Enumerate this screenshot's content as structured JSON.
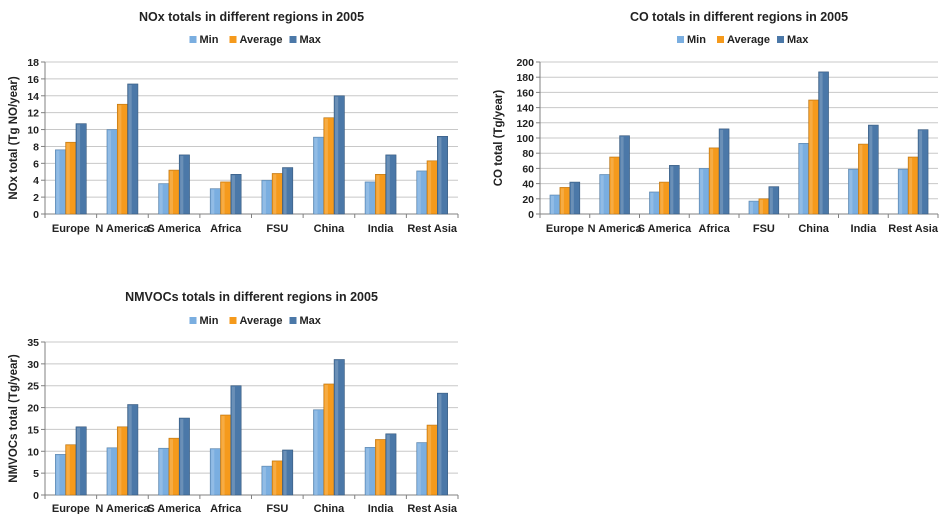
{
  "colors": {
    "min": "#7aaee0",
    "average": "#f59a1c",
    "max": "#4b78a8",
    "grid": "#c8c8c8",
    "axis": "#808080",
    "text": "#222222"
  },
  "legend_labels": [
    "Min",
    "Average",
    "Max"
  ],
  "chart_data": [
    {
      "type": "bar",
      "title": "NOx totals in different regions in 2005",
      "xlabel": "",
      "ylabel": "NOx total (Tg NO/year)",
      "ylim": [
        0,
        18
      ],
      "yticks": [
        0,
        2,
        4,
        6,
        8,
        10,
        12,
        14,
        16,
        18
      ],
      "grid": true,
      "legend": "top-center",
      "categories": [
        "Europe",
        "N America",
        "S America",
        "Africa",
        "FSU",
        "China",
        "India",
        "Rest Asia"
      ],
      "series": [
        {
          "name": "Min",
          "values": [
            7.6,
            10.0,
            3.6,
            3.0,
            4.0,
            9.1,
            3.8,
            5.1
          ]
        },
        {
          "name": "Average",
          "values": [
            8.5,
            13.0,
            5.2,
            3.8,
            4.8,
            11.4,
            4.7,
            6.3
          ]
        },
        {
          "name": "Max",
          "values": [
            10.7,
            15.4,
            7.0,
            4.7,
            5.5,
            14.0,
            7.0,
            9.2
          ]
        }
      ]
    },
    {
      "type": "bar",
      "title": "CO totals in different regions in 2005",
      "xlabel": "",
      "ylabel": "CO total (Tg/year)",
      "ylim": [
        0,
        200
      ],
      "yticks": [
        0,
        20,
        40,
        60,
        80,
        100,
        120,
        140,
        160,
        180,
        200
      ],
      "grid": true,
      "legend": "top-center",
      "categories": [
        "Europe",
        "N America",
        "S America",
        "Africa",
        "FSU",
        "China",
        "India",
        "Rest Asia"
      ],
      "series": [
        {
          "name": "Min",
          "values": [
            25,
            52,
            29,
            60,
            17,
            93,
            59,
            59
          ]
        },
        {
          "name": "Average",
          "values": [
            35,
            75,
            42,
            87,
            20,
            150,
            92,
            75
          ]
        },
        {
          "name": "Max",
          "values": [
            42,
            103,
            64,
            112,
            36,
            187,
            117,
            111
          ]
        }
      ]
    },
    {
      "type": "bar",
      "title": "NMVOCs totals in different regions in 2005",
      "xlabel": "",
      "ylabel": "NMVOCs total (Tg/year)",
      "ylim": [
        0,
        35
      ],
      "yticks": [
        0,
        5,
        10,
        15,
        20,
        25,
        30,
        35
      ],
      "grid": true,
      "legend": "top-center",
      "categories": [
        "Europe",
        "N America",
        "S America",
        "Africa",
        "FSU",
        "China",
        "India",
        "Rest Asia"
      ],
      "series": [
        {
          "name": "Min",
          "values": [
            9.3,
            10.8,
            10.7,
            10.6,
            6.6,
            19.5,
            10.9,
            12.0
          ]
        },
        {
          "name": "Average",
          "values": [
            11.5,
            15.6,
            13.0,
            18.3,
            7.8,
            25.4,
            12.7,
            16.0
          ]
        },
        {
          "name": "Max",
          "values": [
            15.6,
            20.7,
            17.6,
            25.0,
            10.3,
            31.0,
            14.0,
            23.3
          ]
        }
      ]
    }
  ]
}
